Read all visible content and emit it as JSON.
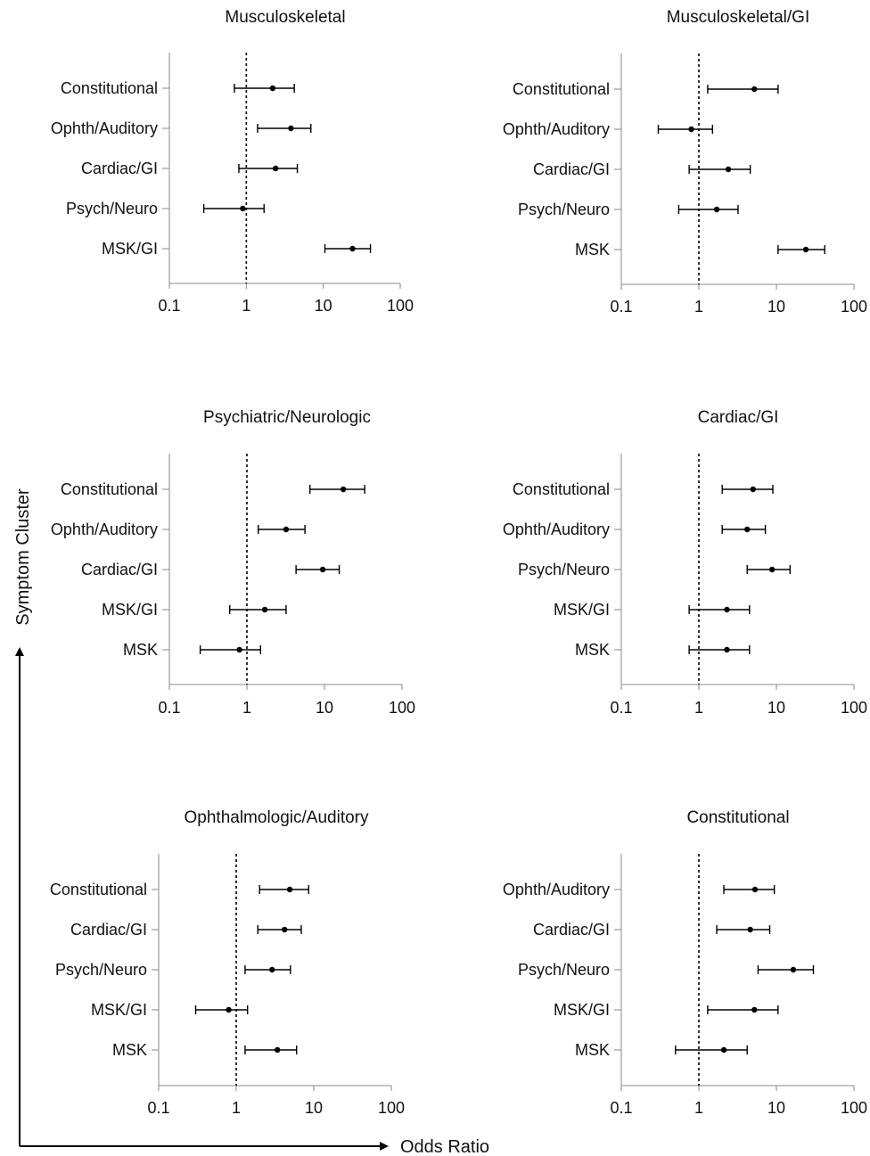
{
  "figure": {
    "y_axis_label": "Symptom Cluster",
    "x_axis_label": "Odds Ratio"
  },
  "chart_data": [
    {
      "type": "forest",
      "title": "Musculoskeletal",
      "scale": "log",
      "xlim": [
        0.1,
        100
      ],
      "ticks": [
        "0.1",
        "1",
        "10",
        "100"
      ],
      "tick_values": [
        0.1,
        1,
        10,
        100
      ],
      "reference_line": 1,
      "rows": [
        {
          "label": "Constitutional",
          "or": 2.2,
          "lo": 0.7,
          "hi": 4.2
        },
        {
          "label": "Ophth/Auditory",
          "or": 3.8,
          "lo": 1.4,
          "hi": 6.9
        },
        {
          "label": "Cardiac/GI",
          "or": 2.4,
          "lo": 0.8,
          "hi": 4.6
        },
        {
          "label": "Psych/Neuro",
          "or": 0.9,
          "lo": 0.28,
          "hi": 1.7
        },
        {
          "label": "MSK/GI",
          "or": 24,
          "lo": 10.5,
          "hi": 41
        }
      ]
    },
    {
      "type": "forest",
      "title": "Musculoskeletal/GI",
      "scale": "log",
      "xlim": [
        0.1,
        100
      ],
      "ticks": [
        "0.1",
        "1",
        "10",
        "100"
      ],
      "tick_values": [
        0.1,
        1,
        10,
        100
      ],
      "reference_line": 1,
      "rows": [
        {
          "label": "Constitutional",
          "or": 5.2,
          "lo": 1.3,
          "hi": 10.5
        },
        {
          "label": "Ophth/Auditory",
          "or": 0.8,
          "lo": 0.3,
          "hi": 1.5
        },
        {
          "label": "Cardiac/GI",
          "or": 2.4,
          "lo": 0.75,
          "hi": 4.6
        },
        {
          "label": "Psych/Neuro",
          "or": 1.7,
          "lo": 0.55,
          "hi": 3.2
        },
        {
          "label": "MSK",
          "or": 24,
          "lo": 10.5,
          "hi": 42
        }
      ]
    },
    {
      "type": "forest",
      "title": "Psychiatric/Neurologic",
      "scale": "log",
      "xlim": [
        0.1,
        100
      ],
      "ticks": [
        "0.1",
        "1",
        "10",
        "100"
      ],
      "tick_values": [
        0.1,
        1,
        10,
        100
      ],
      "reference_line": 1,
      "rows": [
        {
          "label": "Constitutional",
          "or": 17.5,
          "lo": 6.5,
          "hi": 33
        },
        {
          "label": "Ophth/Auditory",
          "or": 3.2,
          "lo": 1.4,
          "hi": 5.6
        },
        {
          "label": "Cardiac/GI",
          "or": 9.5,
          "lo": 4.3,
          "hi": 15.5
        },
        {
          "label": "MSK/GI",
          "or": 1.7,
          "lo": 0.6,
          "hi": 3.2
        },
        {
          "label": "MSK",
          "or": 0.8,
          "lo": 0.25,
          "hi": 1.5
        }
      ]
    },
    {
      "type": "forest",
      "title": "Cardiac/GI",
      "scale": "log",
      "xlim": [
        0.1,
        100
      ],
      "ticks": [
        "0.1",
        "1",
        "10",
        "100"
      ],
      "tick_values": [
        0.1,
        1,
        10,
        100
      ],
      "reference_line": 1,
      "rows": [
        {
          "label": "Constitutional",
          "or": 5.0,
          "lo": 2.0,
          "hi": 9.0
        },
        {
          "label": "Ophth/Auditory",
          "or": 4.2,
          "lo": 2.0,
          "hi": 7.2
        },
        {
          "label": "Psych/Neuro",
          "or": 8.8,
          "lo": 4.2,
          "hi": 15.0
        },
        {
          "label": "MSK/GI",
          "or": 2.3,
          "lo": 0.75,
          "hi": 4.5
        },
        {
          "label": "MSK",
          "or": 2.3,
          "lo": 0.75,
          "hi": 4.5
        }
      ]
    },
    {
      "type": "forest",
      "title": "Ophthalmologic/Auditory",
      "scale": "log",
      "xlim": [
        0.1,
        100
      ],
      "ticks": [
        "0.1",
        "1",
        "10",
        "100"
      ],
      "tick_values": [
        0.1,
        1,
        10,
        100
      ],
      "reference_line": 1,
      "rows": [
        {
          "label": "Constitutional",
          "or": 4.9,
          "lo": 2.0,
          "hi": 8.6
        },
        {
          "label": "Cardiac/GI",
          "or": 4.2,
          "lo": 1.9,
          "hi": 6.9
        },
        {
          "label": "Psych/Neuro",
          "or": 2.9,
          "lo": 1.3,
          "hi": 5.0
        },
        {
          "label": "MSK/GI",
          "or": 0.8,
          "lo": 0.3,
          "hi": 1.4
        },
        {
          "label": "MSK",
          "or": 3.4,
          "lo": 1.3,
          "hi": 6.0
        }
      ]
    },
    {
      "type": "forest",
      "title": "Constitutional",
      "scale": "log",
      "xlim": [
        0.1,
        100
      ],
      "ticks": [
        "0.1",
        "1",
        "10",
        "100"
      ],
      "tick_values": [
        0.1,
        1,
        10,
        100
      ],
      "reference_line": 1,
      "rows": [
        {
          "label": "Ophth/Auditory",
          "or": 5.3,
          "lo": 2.1,
          "hi": 9.4
        },
        {
          "label": "Cardiac/GI",
          "or": 4.6,
          "lo": 1.7,
          "hi": 8.2
        },
        {
          "label": "Psych/Neuro",
          "or": 16.5,
          "lo": 5.8,
          "hi": 30
        },
        {
          "label": "MSK/GI",
          "or": 5.2,
          "lo": 1.3,
          "hi": 10.5
        },
        {
          "label": "MSK",
          "or": 2.1,
          "lo": 0.5,
          "hi": 4.2
        }
      ]
    }
  ]
}
